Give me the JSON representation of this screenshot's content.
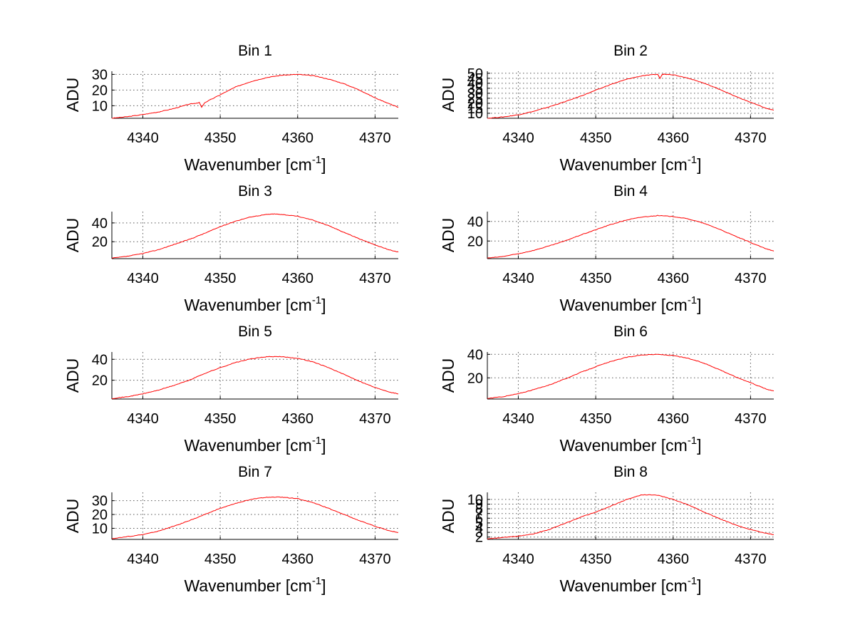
{
  "chart_data": [
    {
      "type": "line",
      "title": "Bin 1",
      "xlabel": "Wavenumber [cm",
      "xlabel_sup": "-1",
      "xlabel_end": "]",
      "ylabel": "ADU",
      "xlim": [
        4336,
        4373
      ],
      "ylim": [
        2,
        32
      ],
      "xticks": [
        4340,
        4350,
        4360,
        4370
      ],
      "yticks": [
        10,
        20,
        30
      ],
      "series": [
        {
          "color": "#ff0000",
          "x": [
            4336,
            4338,
            4340,
            4342,
            4344,
            4346,
            4347.3,
            4347.6,
            4348,
            4350,
            4352,
            4354,
            4356,
            4358,
            4360,
            4362,
            4364,
            4366,
            4368,
            4370,
            4372,
            4373
          ],
          "values": [
            2,
            3,
            4.4,
            6,
            8.2,
            11,
            12,
            9,
            12,
            17,
            22,
            25.5,
            28,
            29.5,
            30,
            29.2,
            27,
            24,
            20,
            15,
            11,
            9
          ]
        }
      ]
    },
    {
      "type": "line",
      "title": "Bin 2",
      "xlabel": "Wavenumber [cm",
      "xlabel_sup": "-1",
      "xlabel_end": "]",
      "ylabel": "ADU",
      "xlim": [
        4336,
        4373
      ],
      "ylim": [
        5,
        52
      ],
      "xticks": [
        4340,
        4350,
        4360,
        4370
      ],
      "yticks": [
        10,
        15,
        20,
        25,
        30,
        35,
        40,
        45,
        50
      ],
      "series": [
        {
          "color": "#ff0000",
          "x": [
            4336,
            4338,
            4340,
            4342,
            4344,
            4346,
            4348,
            4350,
            4352,
            4354,
            4356,
            4358,
            4358.3,
            4358.6,
            4359,
            4360,
            4362,
            4364,
            4366,
            4368,
            4370,
            4372,
            4373
          ],
          "values": [
            5,
            6.3,
            8.5,
            12,
            16.5,
            21.5,
            27,
            33,
            39,
            44,
            47.5,
            49,
            45,
            49,
            49,
            48.5,
            45,
            40,
            34,
            27,
            21,
            15,
            13
          ]
        }
      ]
    },
    {
      "type": "line",
      "title": "Bin 3",
      "xlabel": "Wavenumber [cm",
      "xlabel_sup": "-1",
      "xlabel_end": "]",
      "ylabel": "ADU",
      "xlim": [
        4336,
        4373
      ],
      "ylim": [
        2,
        52
      ],
      "xticks": [
        4340,
        4350,
        4360,
        4370
      ],
      "yticks": [
        20,
        40
      ],
      "series": [
        {
          "color": "#ff0000",
          "x": [
            4336,
            4338,
            4340,
            4342,
            4344,
            4346,
            4348,
            4350,
            4352,
            4354,
            4356,
            4357,
            4358,
            4360,
            4362,
            4364,
            4366,
            4368,
            4370,
            4372,
            4373
          ],
          "values": [
            2.5,
            4.5,
            7.5,
            11.5,
            17,
            22.5,
            29,
            36,
            42,
            46.5,
            49,
            49.5,
            49,
            47,
            43,
            37,
            30,
            23,
            16.5,
            11,
            9
          ]
        }
      ]
    },
    {
      "type": "line",
      "title": "Bin 4",
      "xlabel": "Wavenumber [cm",
      "xlabel_sup": "-1",
      "xlabel_end": "]",
      "ylabel": "ADU",
      "xlim": [
        4336,
        4373
      ],
      "ylim": [
        2,
        50
      ],
      "xticks": [
        4340,
        4350,
        4360,
        4370
      ],
      "yticks": [
        20,
        40
      ],
      "series": [
        {
          "color": "#ff0000",
          "x": [
            4336,
            4338,
            4340,
            4342,
            4344,
            4346,
            4348,
            4350,
            4352,
            4354,
            4356,
            4358,
            4360,
            4362,
            4364,
            4366,
            4368,
            4370,
            4372,
            4373
          ],
          "values": [
            2.5,
            4.2,
            7,
            10.5,
            15,
            20,
            26,
            31.5,
            37,
            41.5,
            44.5,
            46,
            45,
            42.5,
            38,
            32,
            25,
            18.5,
            12,
            10
          ]
        }
      ]
    },
    {
      "type": "line",
      "title": "Bin 5",
      "xlabel": "Wavenumber [cm",
      "xlabel_sup": "-1",
      "xlabel_end": "]",
      "ylabel": "ADU",
      "xlim": [
        4336,
        4373
      ],
      "ylim": [
        2,
        47
      ],
      "xticks": [
        4340,
        4350,
        4360,
        4370
      ],
      "yticks": [
        20,
        40
      ],
      "series": [
        {
          "color": "#ff0000",
          "x": [
            4336,
            4338,
            4340,
            4342,
            4344,
            4346,
            4348,
            4350,
            4352,
            4354,
            4356,
            4358,
            4360,
            4362,
            4364,
            4366,
            4368,
            4370,
            4372,
            4373
          ],
          "values": [
            2.5,
            4.2,
            7,
            10.5,
            15,
            20,
            26.5,
            32,
            37,
            40.5,
            42.5,
            42.5,
            41,
            37.5,
            32,
            25.5,
            19,
            13,
            8.5,
            7
          ]
        }
      ]
    },
    {
      "type": "line",
      "title": "Bin 6",
      "xlabel": "Wavenumber [cm",
      "xlabel_sup": "-1",
      "xlabel_end": "]",
      "ylabel": "ADU",
      "xlim": [
        4336,
        4373
      ],
      "ylim": [
        2,
        42
      ],
      "xticks": [
        4340,
        4350,
        4360,
        4370
      ],
      "yticks": [
        20,
        40
      ],
      "series": [
        {
          "color": "#ff0000",
          "x": [
            4336,
            4338,
            4340,
            4342,
            4344,
            4346,
            4348,
            4350,
            4352,
            4354,
            4356,
            4358,
            4360,
            4362,
            4364,
            4366,
            4368,
            4370,
            4372,
            4373
          ],
          "values": [
            2.5,
            4,
            6.5,
            10,
            14,
            19,
            24.5,
            29.5,
            34,
            37.5,
            39.5,
            40,
            39,
            36.5,
            32.5,
            27,
            21,
            16,
            10.5,
            9
          ]
        }
      ]
    },
    {
      "type": "line",
      "title": "Bin 7",
      "xlabel": "Wavenumber [cm",
      "xlabel_sup": "-1",
      "xlabel_end": "]",
      "ylabel": "ADU",
      "xlim": [
        4336,
        4373
      ],
      "ylim": [
        2,
        36
      ],
      "xticks": [
        4340,
        4350,
        4360,
        4370
      ],
      "yticks": [
        10,
        20,
        30
      ],
      "series": [
        {
          "color": "#ff0000",
          "x": [
            4336,
            4338,
            4340,
            4342,
            4344,
            4346,
            4348,
            4350,
            4352,
            4354,
            4356,
            4358,
            4360,
            4362,
            4364,
            4366,
            4368,
            4370,
            4372,
            4373
          ],
          "values": [
            2.5,
            4,
            5.5,
            8,
            11.5,
            15.5,
            20,
            24.5,
            28,
            31,
            32.5,
            32.5,
            31.5,
            28.5,
            24.5,
            20,
            15.5,
            11.5,
            8,
            7
          ]
        }
      ]
    },
    {
      "type": "line",
      "title": "Bin 8",
      "xlabel": "Wavenumber [cm",
      "xlabel_sup": "-1",
      "xlabel_end": "]",
      "ylabel": "ADU",
      "xlim": [
        4336,
        4373
      ],
      "ylim": [
        1.5,
        11.5
      ],
      "xticks": [
        4340,
        4350,
        4360,
        4370
      ],
      "yticks": [
        2,
        3,
        4,
        5,
        6,
        7,
        8,
        9,
        10
      ],
      "series": [
        {
          "color": "#ff0000",
          "x": [
            4336,
            4338,
            4340,
            4342,
            4344,
            4346,
            4348,
            4350,
            4352,
            4354,
            4356,
            4358,
            4360,
            4362,
            4364,
            4366,
            4368,
            4370,
            4372,
            4373
          ],
          "values": [
            1.6,
            1.9,
            2.2,
            2.7,
            3.6,
            4.9,
            6.2,
            7.3,
            8.6,
            10,
            11,
            10.9,
            10,
            8.8,
            7.3,
            5.9,
            4.6,
            3.6,
            2.8,
            2.5
          ]
        }
      ]
    }
  ]
}
